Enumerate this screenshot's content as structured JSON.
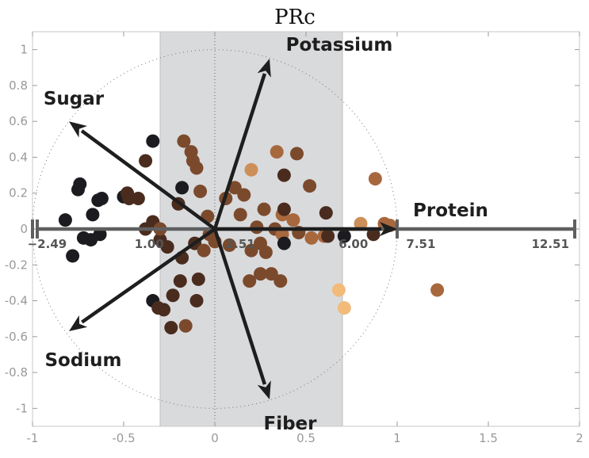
{
  "chart_data": {
    "type": "scatter",
    "title": "PRc",
    "xlim": [
      -1,
      2
    ],
    "ylim": [
      -1.1,
      1.1
    ],
    "x_ticks": [
      -1,
      -0.5,
      0,
      0.5,
      1,
      1.5,
      2
    ],
    "x_tick_labels": [
      "-1",
      "-0.5",
      "0",
      "0.5",
      "1",
      "1.5",
      "2"
    ],
    "y_ticks": [
      -1,
      -0.8,
      -0.6,
      -0.4,
      -0.2,
      0,
      0.2,
      0.4,
      0.6,
      0.8,
      1
    ],
    "y_tick_labels": [
      "-1",
      "-0.8",
      "-0.6",
      "-0.4",
      "-0.2",
      "0",
      "0.2",
      "0.4",
      "0.6",
      "0.8",
      "1"
    ],
    "grid": false,
    "unit_circle": true,
    "shaded_band": {
      "x_range": [
        -0.3,
        0.7
      ],
      "color": "#d9dadc"
    },
    "vectors": [
      {
        "label": "Potassium",
        "x": 0.3,
        "y": 0.95
      },
      {
        "label": "Sugar",
        "x": -0.8,
        "y": 0.6
      },
      {
        "label": "Protein",
        "x": 1.0,
        "y": 0.0
      },
      {
        "label": "Sodium",
        "x": -0.8,
        "y": -0.57
      },
      {
        "label": "Fiber",
        "x": 0.3,
        "y": -0.95
      }
    ],
    "projection_axis": {
      "x_range": [
        -1.0,
        2.0
      ],
      "tick_positions": [
        -1.0,
        1.0
      ],
      "labels": [
        {
          "text": "−2.49",
          "x": -0.92
        },
        {
          "text": "1.00",
          "x": -0.36
        },
        {
          "text": "2.51",
          "x": 0.14
        },
        {
          "text": "6.00",
          "x": 0.76
        },
        {
          "text": "7.51",
          "x": 1.13
        },
        {
          "text": "12.51",
          "x": 1.84
        }
      ]
    },
    "color_scale": [
      "#1c1c20",
      "#4a2c1f",
      "#7b4a2c",
      "#a8683e",
      "#cd8f58",
      "#f2bb7a"
    ],
    "points": [
      {
        "x": -0.82,
        "y": 0.05,
        "c": 0
      },
      {
        "x": -0.78,
        "y": -0.15,
        "c": 0
      },
      {
        "x": -0.75,
        "y": 0.22,
        "c": 0
      },
      {
        "x": -0.74,
        "y": 0.25,
        "c": 0
      },
      {
        "x": -0.72,
        "y": -0.05,
        "c": 0
      },
      {
        "x": -0.68,
        "y": -0.06,
        "c": 0
      },
      {
        "x": -0.67,
        "y": 0.08,
        "c": 0
      },
      {
        "x": -0.64,
        "y": 0.16,
        "c": 0
      },
      {
        "x": -0.62,
        "y": 0.17,
        "c": 0
      },
      {
        "x": -0.63,
        "y": -0.03,
        "c": 0
      },
      {
        "x": -0.5,
        "y": 0.18,
        "c": 0
      },
      {
        "x": -0.48,
        "y": 0.2,
        "c": 1
      },
      {
        "x": -0.47,
        "y": 0.17,
        "c": 1
      },
      {
        "x": -0.42,
        "y": 0.17,
        "c": 1
      },
      {
        "x": -0.38,
        "y": 0.38,
        "c": 1
      },
      {
        "x": -0.38,
        "y": 0.0,
        "c": 1
      },
      {
        "x": -0.34,
        "y": 0.04,
        "c": 1
      },
      {
        "x": -0.34,
        "y": 0.49,
        "c": 0
      },
      {
        "x": -0.3,
        "y": -0.06,
        "c": 1
      },
      {
        "x": -0.3,
        "y": 0.0,
        "c": 2
      },
      {
        "x": -0.34,
        "y": -0.4,
        "c": 0
      },
      {
        "x": -0.31,
        "y": -0.44,
        "c": 1
      },
      {
        "x": -0.28,
        "y": -0.45,
        "c": 1
      },
      {
        "x": -0.26,
        "y": -0.1,
        "c": 1
      },
      {
        "x": -0.24,
        "y": -0.55,
        "c": 1
      },
      {
        "x": -0.23,
        "y": -0.37,
        "c": 1
      },
      {
        "x": -0.2,
        "y": 0.14,
        "c": 1
      },
      {
        "x": -0.19,
        "y": -0.29,
        "c": 1
      },
      {
        "x": -0.18,
        "y": -0.16,
        "c": 1
      },
      {
        "x": -0.18,
        "y": 0.23,
        "c": 0
      },
      {
        "x": -0.17,
        "y": 0.49,
        "c": 2
      },
      {
        "x": -0.16,
        "y": -0.54,
        "c": 2
      },
      {
        "x": -0.13,
        "y": 0.43,
        "c": 2
      },
      {
        "x": -0.12,
        "y": 0.38,
        "c": 2
      },
      {
        "x": -0.11,
        "y": -0.08,
        "c": 1
      },
      {
        "x": -0.1,
        "y": -0.4,
        "c": 1
      },
      {
        "x": -0.1,
        "y": 0.34,
        "c": 2
      },
      {
        "x": -0.09,
        "y": -0.28,
        "c": 1
      },
      {
        "x": -0.08,
        "y": 0.21,
        "c": 2
      },
      {
        "x": -0.06,
        "y": -0.12,
        "c": 2
      },
      {
        "x": -0.04,
        "y": 0.07,
        "c": 2
      },
      {
        "x": -0.03,
        "y": -0.03,
        "c": 2
      },
      {
        "x": 0.0,
        "y": -0.07,
        "c": 2
      },
      {
        "x": 0.06,
        "y": 0.17,
        "c": 2
      },
      {
        "x": 0.08,
        "y": -0.09,
        "c": 2
      },
      {
        "x": 0.11,
        "y": 0.23,
        "c": 2
      },
      {
        "x": 0.14,
        "y": 0.08,
        "c": 2
      },
      {
        "x": 0.16,
        "y": 0.19,
        "c": 2
      },
      {
        "x": 0.2,
        "y": -0.12,
        "c": 2
      },
      {
        "x": 0.19,
        "y": -0.29,
        "c": 2
      },
      {
        "x": 0.2,
        "y": 0.33,
        "c": 4
      },
      {
        "x": 0.23,
        "y": 0.01,
        "c": 2
      },
      {
        "x": 0.25,
        "y": -0.08,
        "c": 2
      },
      {
        "x": 0.25,
        "y": -0.25,
        "c": 2
      },
      {
        "x": 0.27,
        "y": 0.11,
        "c": 2
      },
      {
        "x": 0.28,
        "y": -0.13,
        "c": 2
      },
      {
        "x": 0.31,
        "y": -0.25,
        "c": 2
      },
      {
        "x": 0.33,
        "y": 0.0,
        "c": 2
      },
      {
        "x": 0.34,
        "y": 0.43,
        "c": 3
      },
      {
        "x": 0.36,
        "y": -0.29,
        "c": 2
      },
      {
        "x": 0.37,
        "y": -0.03,
        "c": 3
      },
      {
        "x": 0.37,
        "y": 0.08,
        "c": 3
      },
      {
        "x": 0.38,
        "y": 0.3,
        "c": 1
      },
      {
        "x": 0.38,
        "y": 0.11,
        "c": 1
      },
      {
        "x": 0.38,
        "y": -0.08,
        "c": 0
      },
      {
        "x": 0.43,
        "y": 0.05,
        "c": 3
      },
      {
        "x": 0.45,
        "y": 0.42,
        "c": 2
      },
      {
        "x": 0.46,
        "y": -0.02,
        "c": 2
      },
      {
        "x": 0.52,
        "y": 0.24,
        "c": 2
      },
      {
        "x": 0.53,
        "y": -0.05,
        "c": 3
      },
      {
        "x": 0.6,
        "y": -0.04,
        "c": 3
      },
      {
        "x": 0.61,
        "y": 0.09,
        "c": 1
      },
      {
        "x": 0.62,
        "y": -0.04,
        "c": 1
      },
      {
        "x": 0.68,
        "y": -0.34,
        "c": 5
      },
      {
        "x": 0.71,
        "y": -0.44,
        "c": 5
      },
      {
        "x": 0.71,
        "y": -0.04,
        "c": 0
      },
      {
        "x": 0.8,
        "y": 0.03,
        "c": 4
      },
      {
        "x": 0.87,
        "y": -0.03,
        "c": 1
      },
      {
        "x": 0.88,
        "y": 0.28,
        "c": 3
      },
      {
        "x": 0.93,
        "y": 0.03,
        "c": 3
      },
      {
        "x": 0.96,
        "y": 0.02,
        "c": 3
      },
      {
        "x": 1.22,
        "y": -0.34,
        "c": 3
      }
    ]
  }
}
